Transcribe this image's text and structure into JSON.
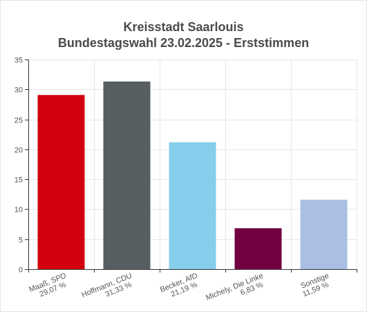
{
  "chart_data": {
    "type": "bar",
    "title": "Kreisstadt Saarlouis",
    "subtitle": "Bundestagswahl 23.02.2025  - Erststimmen",
    "categories": [
      "Maaß, SPD",
      "Hoffmann, CDU",
      "Becker, AfD",
      "Michely, Die Linke",
      "Sonstige"
    ],
    "value_labels": [
      "29,07 %",
      "31,33 %",
      "21,19 %",
      "6,83 %",
      "11,59 %"
    ],
    "values": [
      29.07,
      31.33,
      21.19,
      6.83,
      11.59
    ],
    "colors": [
      "#d3000f",
      "#575f62",
      "#86ceeb",
      "#730040",
      "#aabfe3"
    ],
    "yticks": [
      0,
      5,
      10,
      15,
      20,
      25,
      30,
      35
    ],
    "ylim": [
      0,
      35
    ],
    "xlabel": "",
    "ylabel": "",
    "grid": true,
    "legend": "none"
  }
}
